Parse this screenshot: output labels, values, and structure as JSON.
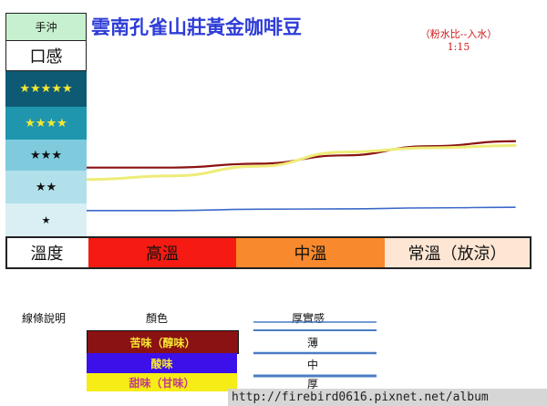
{
  "title": "雲南孔雀山莊黃金咖啡豆",
  "ratio_note": {
    "line1": "（粉水比--入水）",
    "line2": "1:15"
  },
  "rating_column": {
    "brew_method": "手沖",
    "taste_header": "口感",
    "levels": [
      "★★★★★",
      "★★★★",
      "★★★",
      "★★",
      "★"
    ]
  },
  "temperature": {
    "label": "溫度",
    "bands": [
      {
        "label": "高溫",
        "color": "#f51b12"
      },
      {
        "label": "中溫",
        "color": "#f8892c"
      },
      {
        "label": "常溫（放涼）",
        "color": "#fde6d4"
      }
    ]
  },
  "chart_data": {
    "type": "line",
    "x_categories": [
      "高溫",
      "中溫",
      "常溫（放涼）"
    ],
    "y_scale": "stars 1-5",
    "ylim": [
      0.5,
      5.5
    ],
    "x": [
      0,
      0.2,
      0.4,
      0.6,
      0.8,
      1.0
    ],
    "series": [
      {
        "name": "苦味（醇味）",
        "color": "#8a1212",
        "width": 2.2,
        "values": [
          2.58,
          2.58,
          2.7,
          2.95,
          3.23,
          3.38
        ]
      },
      {
        "name": "甜味（甘味）",
        "color": "#eeec78",
        "width": 3,
        "values": [
          2.22,
          2.33,
          2.62,
          3.05,
          3.18,
          3.25
        ]
      },
      {
        "name": "酸味",
        "color": "#3b69c9",
        "width": 1.6,
        "values": [
          1.28,
          1.28,
          1.32,
          1.33,
          1.36,
          1.38
        ]
      }
    ]
  },
  "legend": {
    "label": "線條說明",
    "color_header": "顏色",
    "thickness_header": "厚實感",
    "swatches": [
      {
        "label": "苦味（醇味）",
        "color": "#8a1212"
      },
      {
        "label": "酸味",
        "color": "#3c10e8"
      },
      {
        "label": "甜味（甘味）",
        "color": "#f6ec16"
      }
    ],
    "thickness_levels": [
      "薄",
      "中",
      "厚"
    ]
  },
  "watermark": "http://firebird0616.pixnet.net/album"
}
